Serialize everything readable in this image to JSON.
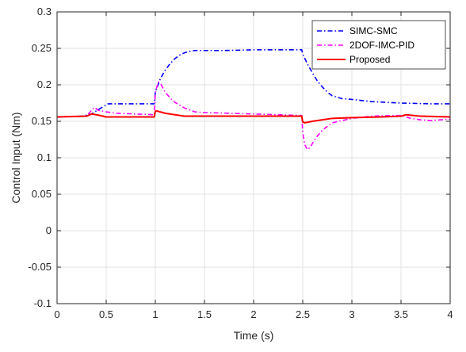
{
  "chart_data": {
    "type": "line",
    "title": "",
    "xlabel": "Time (s)",
    "ylabel": "Control Input (Nm)",
    "xlim": [
      0,
      4
    ],
    "ylim": [
      -0.1,
      0.3
    ],
    "xticks": [
      "0",
      "0.5",
      "1",
      "1.5",
      "2",
      "2.5",
      "3",
      "3.5",
      "4"
    ],
    "yticks": [
      "-0.1",
      "-0.05",
      "0",
      "0.05",
      "0.1",
      "0.15",
      "0.2",
      "0.25",
      "0.3"
    ],
    "grid": true,
    "legend_position": "top-right",
    "series": [
      {
        "name": "SIMC-SMC",
        "color": "#0000ff",
        "line_style": "dash-dot",
        "x": [
          0,
          0.25,
          0.35,
          0.42,
          0.48,
          0.52,
          0.7,
          0.99,
          1.0,
          1.05,
          1.1,
          1.15,
          1.2,
          1.25,
          1.3,
          1.35,
          1.4,
          1.5,
          1.7,
          2.0,
          2.3,
          2.49,
          2.5,
          2.55,
          2.6,
          2.65,
          2.7,
          2.75,
          2.8,
          2.9,
          3.0,
          3.2,
          3.5,
          3.8,
          4.0
        ],
        "y": [
          0.156,
          0.157,
          0.16,
          0.166,
          0.171,
          0.174,
          0.174,
          0.174,
          0.19,
          0.208,
          0.22,
          0.229,
          0.236,
          0.241,
          0.244,
          0.246,
          0.247,
          0.247,
          0.247,
          0.248,
          0.248,
          0.248,
          0.242,
          0.228,
          0.216,
          0.205,
          0.197,
          0.19,
          0.185,
          0.181,
          0.18,
          0.177,
          0.175,
          0.174,
          0.174
        ]
      },
      {
        "name": "2DOF-IMC-PID",
        "color": "#ff00ff",
        "line_style": "dash-dot",
        "x": [
          0,
          0.3,
          0.35,
          0.38,
          0.42,
          0.5,
          0.6,
          0.8,
          0.99,
          1.0,
          1.03,
          1.06,
          1.1,
          1.15,
          1.2,
          1.3,
          1.4,
          1.5,
          2.0,
          2.49,
          2.5,
          2.52,
          2.55,
          2.58,
          2.6,
          2.65,
          2.7,
          2.8,
          3.0,
          3.2,
          3.4,
          3.5,
          3.55,
          3.6,
          3.7,
          3.8,
          4.0
        ],
        "y": [
          0.156,
          0.157,
          0.165,
          0.169,
          0.165,
          0.163,
          0.161,
          0.16,
          0.159,
          0.19,
          0.204,
          0.2,
          0.19,
          0.182,
          0.176,
          0.168,
          0.163,
          0.162,
          0.16,
          0.158,
          0.135,
          0.118,
          0.111,
          0.115,
          0.12,
          0.13,
          0.138,
          0.148,
          0.154,
          0.157,
          0.158,
          0.158,
          0.156,
          0.154,
          0.152,
          0.151,
          0.153
        ]
      },
      {
        "name": "Proposed",
        "color": "#ff0000",
        "line_style": "solid",
        "x": [
          0,
          0.3,
          0.35,
          0.4,
          0.5,
          0.6,
          0.8,
          0.99,
          1.0,
          1.02,
          1.1,
          1.2,
          1.3,
          1.5,
          2.0,
          2.3,
          2.49,
          2.5,
          2.52,
          2.6,
          2.7,
          2.8,
          3.0,
          3.3,
          3.5,
          3.55,
          3.7,
          4.0
        ],
        "y": [
          0.156,
          0.157,
          0.16,
          0.159,
          0.156,
          0.156,
          0.156,
          0.156,
          0.164,
          0.164,
          0.161,
          0.159,
          0.157,
          0.157,
          0.157,
          0.157,
          0.157,
          0.149,
          0.148,
          0.15,
          0.152,
          0.154,
          0.155,
          0.156,
          0.157,
          0.159,
          0.157,
          0.156
        ]
      }
    ]
  }
}
